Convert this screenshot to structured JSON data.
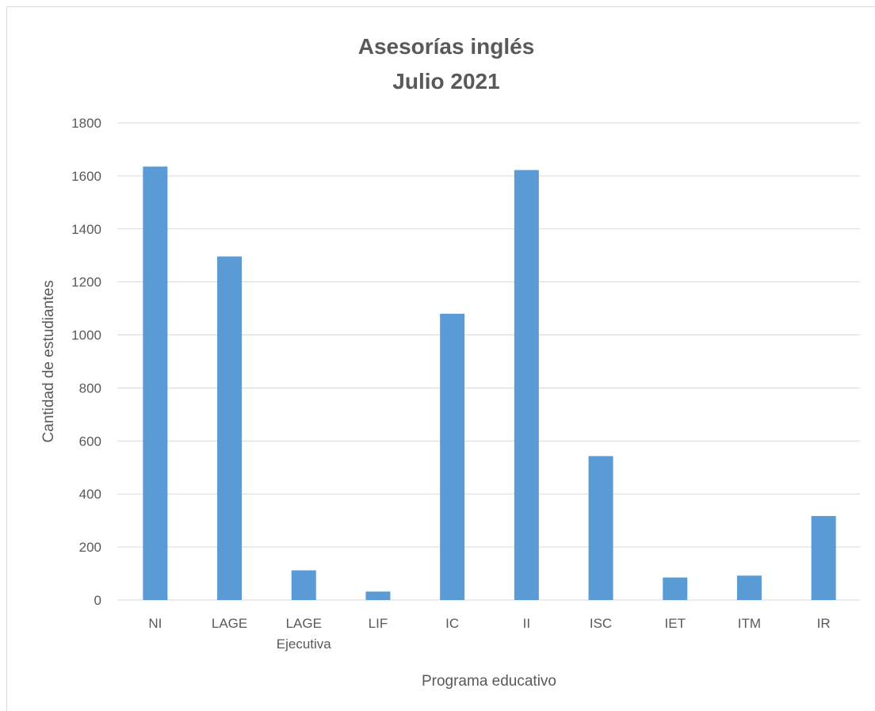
{
  "chart_data": {
    "type": "bar",
    "title": [
      "Asesorías inglés",
      "Julio 2021"
    ],
    "xlabel": "Programa educativo",
    "ylabel": "Cantidad de estudiantes",
    "categories": [
      [
        "NI"
      ],
      [
        "LAGE"
      ],
      [
        "LAGE",
        "Ejecutiva"
      ],
      [
        "LIF"
      ],
      [
        "IC"
      ],
      [
        "II"
      ],
      [
        "ISC"
      ],
      [
        "IET"
      ],
      [
        "ITM"
      ],
      [
        "IR"
      ]
    ],
    "values": [
      1635,
      1296,
      112,
      32,
      1080,
      1622,
      543,
      85,
      92,
      317
    ],
    "ylim": [
      0,
      1800
    ],
    "yticks": [
      0,
      200,
      400,
      600,
      800,
      1000,
      1200,
      1400,
      1600,
      1800
    ],
    "grid": true,
    "legend": "none",
    "colors": {
      "bar": "#5b9bd5",
      "grid": "#d9d9d9",
      "text": "#595959"
    }
  }
}
